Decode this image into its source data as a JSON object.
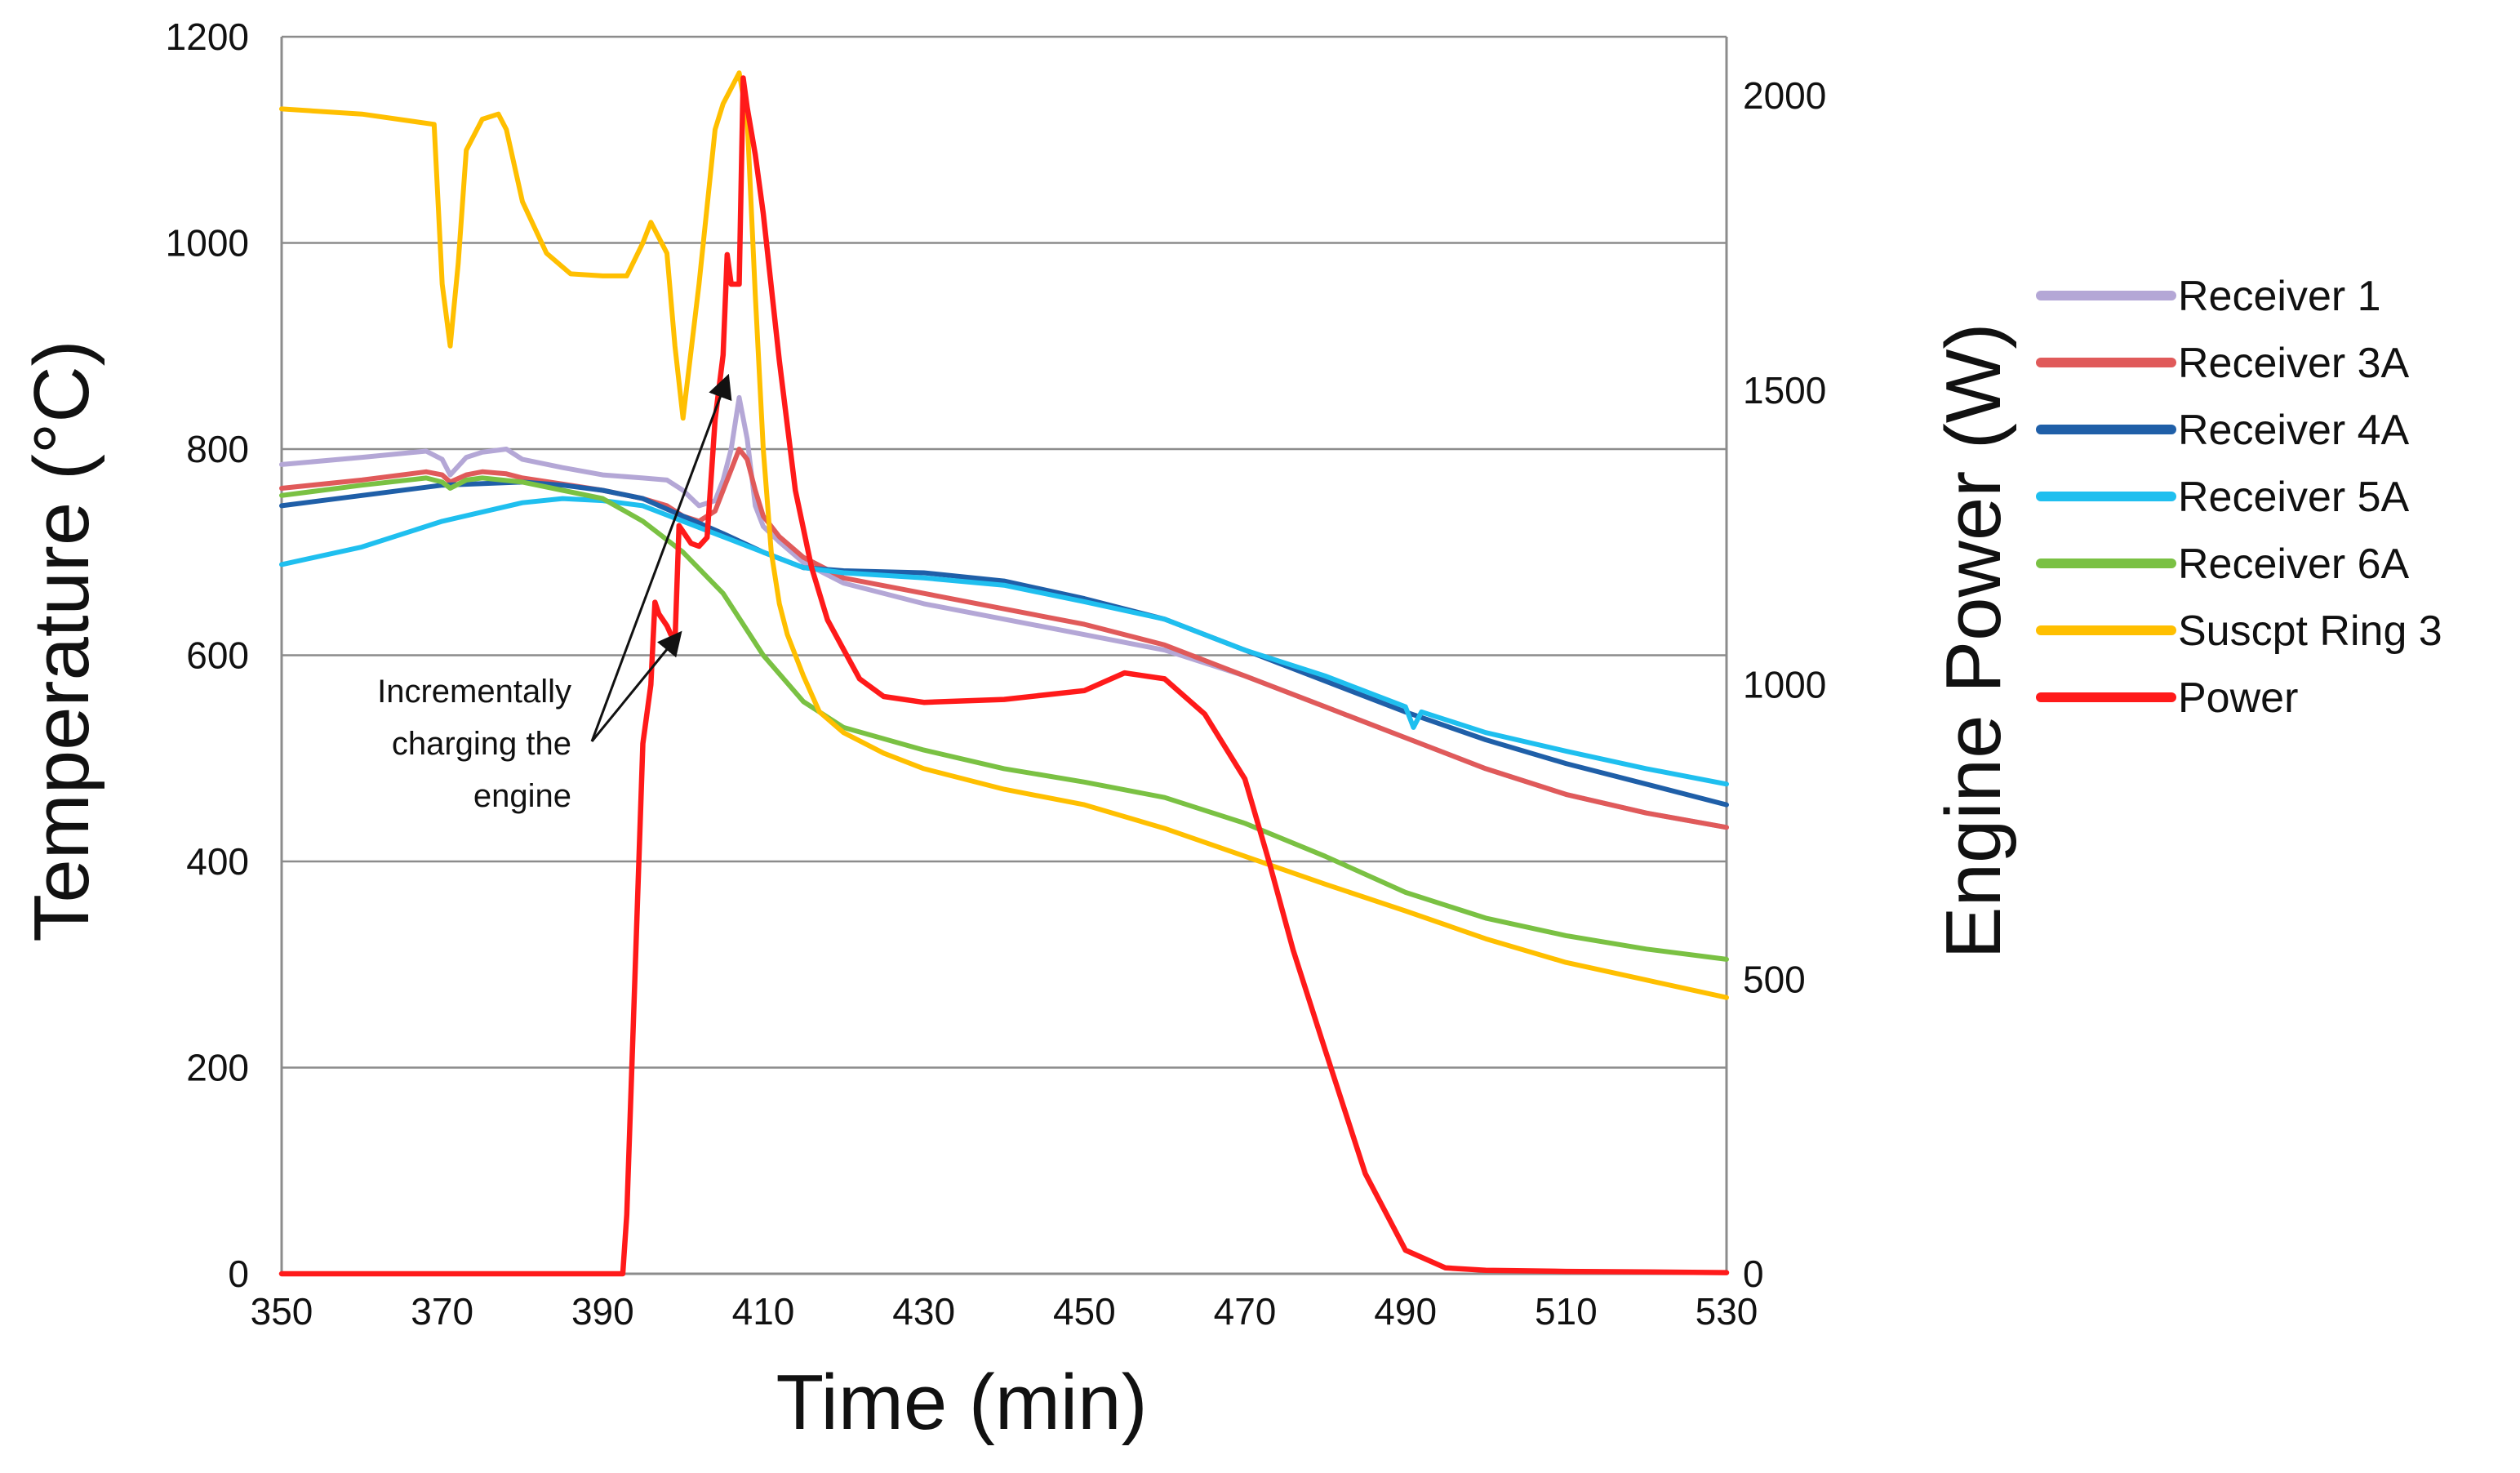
{
  "chart_data": {
    "type": "line",
    "title": "",
    "xlabel": "Time (min)",
    "ylabel": "Temperature (°C)",
    "y2label": "Engine Power (W)",
    "xlim": [
      350,
      530
    ],
    "ylim": [
      0,
      1200
    ],
    "y2lim": [
      0,
      2100
    ],
    "xticks": [
      "350",
      "370",
      "390",
      "410",
      "430",
      "450",
      "470",
      "490",
      "510",
      "530"
    ],
    "yticks": [
      "0",
      "200",
      "400",
      "600",
      "800",
      "1000",
      "1200"
    ],
    "y2ticks": [
      "0",
      "500",
      "1000",
      "1500",
      "2000"
    ],
    "grid": true,
    "legend_position": "right",
    "annotation": {
      "lines": [
        "Incrementally",
        "charging the",
        "engine"
      ],
      "arrow_targets": [
        [
          399.5,
          1085
        ],
        [
          405.5,
          1520
        ]
      ]
    },
    "series": [
      {
        "name": "Receiver 1",
        "color": "#b4a7d6",
        "axis": "left",
        "x": [
          350,
          360,
          368,
          370,
          371,
          373,
          375,
          378,
          380,
          385,
          390,
          395,
          398,
          400,
          402,
          404,
          405,
          406,
          407,
          408,
          409,
          410,
          412,
          415,
          420,
          430,
          440,
          450,
          460,
          470,
          480,
          490,
          500,
          510,
          520,
          530
        ],
        "y": [
          785,
          792,
          798,
          790,
          775,
          792,
          797,
          800,
          790,
          782,
          775,
          772,
          770,
          760,
          745,
          750,
          770,
          800,
          850,
          810,
          745,
          725,
          710,
          690,
          670,
          650,
          635,
          620,
          605,
          580,
          550,
          520,
          490,
          465,
          447,
          433
        ]
      },
      {
        "name": "Receiver 3A",
        "color": "#e05a5a",
        "axis": "left",
        "x": [
          350,
          360,
          368,
          370,
          371,
          373,
          375,
          378,
          380,
          385,
          390,
          395,
          398,
          400,
          402,
          404,
          405,
          406,
          407,
          408,
          409,
          410,
          412,
          415,
          420,
          430,
          440,
          450,
          460,
          470,
          480,
          490,
          500,
          510,
          520,
          530
        ],
        "y": [
          762,
          770,
          778,
          775,
          768,
          775,
          778,
          776,
          772,
          766,
          760,
          752,
          745,
          735,
          730,
          740,
          760,
          780,
          800,
          790,
          760,
          735,
          715,
          695,
          675,
          660,
          645,
          630,
          610,
          580,
          550,
          520,
          490,
          465,
          447,
          433
        ]
      },
      {
        "name": "Receiver 4A",
        "color": "#1f5fa8",
        "axis": "left",
        "x": [
          350,
          360,
          370,
          380,
          385,
          390,
          395,
          400,
          405,
          410,
          415,
          420,
          430,
          440,
          450,
          460,
          470,
          480,
          490,
          500,
          510,
          520,
          530
        ],
        "y": [
          745,
          755,
          765,
          768,
          765,
          760,
          752,
          735,
          718,
          700,
          685,
          682,
          680,
          672,
          655,
          635,
          605,
          575,
          545,
          518,
          495,
          475,
          455
        ]
      },
      {
        "name": "Receiver 5A",
        "color": "#1fbfef",
        "axis": "left",
        "x": [
          350,
          360,
          370,
          380,
          385,
          390,
          395,
          400,
          405,
          410,
          415,
          420,
          430,
          440,
          450,
          460,
          470,
          480,
          490,
          491,
          492,
          500,
          510,
          520,
          530
        ],
        "y": [
          688,
          705,
          730,
          748,
          752,
          750,
          745,
          730,
          715,
          700,
          685,
          680,
          675,
          668,
          652,
          635,
          605,
          580,
          550,
          530,
          545,
          525,
          507,
          490,
          475
        ]
      },
      {
        "name": "Receiver 6A",
        "color": "#7ac143",
        "axis": "left",
        "x": [
          350,
          360,
          368,
          370,
          371,
          373,
          375,
          380,
          385,
          390,
          395,
          400,
          405,
          410,
          415,
          420,
          430,
          440,
          450,
          460,
          470,
          480,
          490,
          500,
          510,
          520,
          530
        ],
        "y": [
          755,
          765,
          772,
          768,
          762,
          770,
          772,
          768,
          760,
          752,
          730,
          700,
          660,
          600,
          555,
          530,
          508,
          490,
          477,
          462,
          437,
          405,
          370,
          345,
          328,
          315,
          305
        ]
      },
      {
        "name": "Suscpt Ring 3",
        "color": "#ffbf00",
        "axis": "left",
        "x": [
          350,
          360,
          369,
          370,
          371,
          372,
          373,
          375,
          377,
          378,
          380,
          383,
          386,
          390,
          393,
          395,
          396,
          397,
          398,
          399,
          400,
          402,
          404,
          405,
          406,
          407,
          408,
          409,
          410,
          411,
          412,
          413,
          415,
          417,
          420,
          425,
          430,
          440,
          450,
          460,
          470,
          480,
          490,
          500,
          510,
          520,
          530
        ],
        "y": [
          1130,
          1125,
          1115,
          960,
          900,
          980,
          1090,
          1120,
          1125,
          1110,
          1040,
          990,
          970,
          968,
          968,
          1000,
          1020,
          1005,
          990,
          900,
          830,
          960,
          1110,
          1135,
          1150,
          1165,
          1120,
          950,
          800,
          700,
          650,
          620,
          580,
          545,
          525,
          505,
          490,
          470,
          455,
          432,
          405,
          378,
          352,
          325,
          302,
          285,
          268
        ]
      },
      {
        "name": "Power",
        "color": "#ff1a1a",
        "axis": "right",
        "x": [
          350,
          392.5,
          393,
          394,
          395,
          396,
          396.5,
          397,
          398,
          399,
          399.5,
          400,
          401,
          402,
          403,
          404,
          405,
          405.5,
          406,
          407,
          407.5,
          408,
          409,
          410,
          412,
          414,
          416,
          418,
          420,
          422,
          425,
          430,
          440,
          450,
          455,
          460,
          465,
          470,
          473,
          476,
          480,
          485,
          490,
          495,
          500,
          510,
          520,
          530
        ],
        "y": [
          0,
          0,
          100,
          500,
          900,
          1000,
          1140,
          1120,
          1100,
          1070,
          1270,
          1260,
          1240,
          1235,
          1250,
          1450,
          1560,
          1730,
          1680,
          1680,
          2030,
          1980,
          1900,
          1800,
          1550,
          1330,
          1200,
          1110,
          1060,
          1010,
          980,
          970,
          975,
          990,
          1020,
          1010,
          950,
          840,
          700,
          550,
          380,
          170,
          40,
          10,
          6,
          4,
          3,
          2
        ]
      }
    ]
  }
}
